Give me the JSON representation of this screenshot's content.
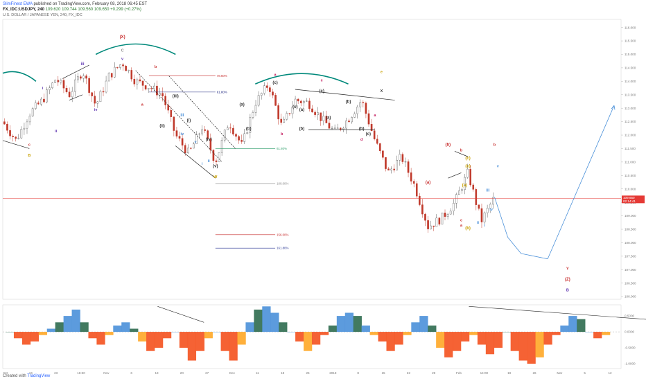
{
  "header": {
    "author": "SlimFinest EWA",
    "published": "published on TradingView.com, February 08, 2018 06:45 EST",
    "symbol": "FX_IDC:USDJPY, 240",
    "ohlc_o": "109.620",
    "ohlc_rest": "109.744 109.560 109.650",
    "change": "+0.299 (+0.27%)",
    "title": "U.S. DOLLAR / JAPANESE YEN, 240, FX_IDC"
  },
  "footer": {
    "created": "Created with",
    "brand": "TradingView"
  },
  "colors": {
    "up": "#5a5a5a",
    "down": "#c0392b",
    "arc": "#00897b",
    "projection": "#4a90d9",
    "fib100": "#888888",
    "fib61": "#1a237e",
    "fib78": "#c62828",
    "fib61g": "#2e9e6a",
    "fib161": "#283593",
    "fib156": "#c62828",
    "osc_pos": "#2e6b4f",
    "osc_pos2": "#4a90d9",
    "osc_neg": "#f4511e",
    "osc_neg2": "#ffa726",
    "price_line": "#e53935"
  },
  "chart_data": [
    {
      "type": "candlestick",
      "title": "U.S. DOLLAR / JAPANESE YEN, 240, FX_IDC",
      "y_ticks": [
        "116.000",
        "115.500",
        "115.000",
        "114.500",
        "114.000",
        "113.500",
        "113.000",
        "112.500",
        "112.000",
        "111.500",
        "111.000",
        "110.500",
        "110.000",
        "109.500",
        "109.000",
        "108.500",
        "108.000",
        "107.500",
        "107.000",
        "106.500",
        "106.000"
      ],
      "ylim": [
        105.9,
        116.3
      ],
      "x_ticks": [
        "Oct",
        "16",
        "23",
        "16:30",
        "Nov",
        "6",
        "13",
        "20",
        "27",
        "Dec",
        "11",
        "18",
        "25",
        "2018",
        "8",
        "15",
        "22",
        "29",
        "Feb",
        "14:00",
        "19",
        "26",
        "Mar",
        "5",
        "12"
      ],
      "last_price": "109.650",
      "last_time": "02:14:41",
      "path_points": [
        {
          "t": 0,
          "v": 112.5
        },
        {
          "t": 4,
          "v": 111.8
        },
        {
          "t": 8,
          "v": 112.8
        },
        {
          "t": 12,
          "v": 113.3
        },
        {
          "t": 16,
          "v": 114.1
        },
        {
          "t": 20,
          "v": 113.5
        },
        {
          "t": 24,
          "v": 114.4
        },
        {
          "t": 28,
          "v": 113.1
        },
        {
          "t": 32,
          "v": 114.2
        },
        {
          "t": 36,
          "v": 114.7
        },
        {
          "t": 40,
          "v": 114.0
        },
        {
          "t": 44,
          "v": 113.8
        },
        {
          "t": 48,
          "v": 113.5
        },
        {
          "t": 52,
          "v": 112.0
        },
        {
          "t": 56,
          "v": 111.3
        },
        {
          "t": 60,
          "v": 112.3
        },
        {
          "t": 64,
          "v": 111.0
        },
        {
          "t": 68,
          "v": 112.5
        },
        {
          "t": 72,
          "v": 111.6
        },
        {
          "t": 76,
          "v": 113.2
        },
        {
          "t": 80,
          "v": 113.9
        },
        {
          "t": 84,
          "v": 112.3
        },
        {
          "t": 88,
          "v": 113.3
        },
        {
          "t": 92,
          "v": 113.2
        },
        {
          "t": 96,
          "v": 112.6
        },
        {
          "t": 100,
          "v": 112.1
        },
        {
          "t": 104,
          "v": 112.6
        },
        {
          "t": 108,
          "v": 113.3
        },
        {
          "t": 112,
          "v": 111.8
        },
        {
          "t": 116,
          "v": 110.6
        },
        {
          "t": 120,
          "v": 111.2
        },
        {
          "t": 124,
          "v": 110.1
        },
        {
          "t": 128,
          "v": 108.6
        },
        {
          "t": 132,
          "v": 108.9
        },
        {
          "t": 136,
          "v": 109.5
        },
        {
          "t": 140,
          "v": 110.6
        },
        {
          "t": 144,
          "v": 108.8
        },
        {
          "t": 148,
          "v": 109.7
        }
      ],
      "projection": [
        {
          "t": 148,
          "v": 109.7
        },
        {
          "t": 152,
          "v": 108.2
        },
        {
          "t": 156,
          "v": 107.6
        },
        {
          "t": 164,
          "v": 107.4
        },
        {
          "t": 184,
          "v": 113.1
        }
      ],
      "fib_levels": [
        {
          "label": "78.60%",
          "value": 114.2
        },
        {
          "label": "61.80%",
          "value": 113.6
        },
        {
          "label": "61.80%",
          "value": 111.5
        },
        {
          "label": "100.00%",
          "value": 110.2
        },
        {
          "label": "156.00%",
          "value": 108.3
        },
        {
          "label": "161.80%",
          "value": 107.8
        }
      ],
      "wave_labels": [
        "(X)",
        "C",
        "v",
        "iii",
        "i",
        "ii",
        "iv",
        "B",
        "c",
        "b",
        "a",
        "(iii)",
        "(ii)",
        "(i)",
        "(iv)",
        "(v)",
        "iii",
        "iv",
        "v",
        "i",
        "ii",
        "W",
        "(a)",
        "(b)",
        "(c)",
        "a",
        "b",
        "c",
        "d",
        "e",
        "X",
        "(c)",
        "(a)",
        "(b)",
        "(c)",
        "(b)",
        "(a)",
        "(b)",
        "(c)",
        "a",
        "(a)",
        "(b)",
        "(c)",
        "a",
        "b",
        "c",
        "(a)",
        "(b)",
        "(c)",
        "b",
        "i",
        "ii",
        "iii",
        "iv",
        "v",
        "Y",
        "(Z)",
        "B"
      ]
    },
    {
      "type": "area",
      "title": "",
      "y_ticks": [
        "0.5000",
        "0.0000",
        "-0.5000",
        "-1.0000"
      ],
      "ylim": [
        -1.15,
        0.85
      ],
      "values": [
        0.0,
        -0.2,
        -0.4,
        -0.3,
        -0.1,
        0.1,
        0.3,
        0.5,
        0.7,
        0.3,
        -0.2,
        -0.4,
        -0.1,
        0.2,
        0.3,
        0.1,
        -0.3,
        -0.6,
        -0.5,
        -0.2,
        0.0,
        -0.5,
        -0.9,
        -0.6,
        -0.2,
        0.0,
        -0.6,
        -0.9,
        -0.4,
        0.3,
        0.7,
        0.8,
        0.6,
        0.3,
        0.0,
        -0.3,
        -0.6,
        -0.4,
        -0.1,
        0.2,
        0.5,
        0.6,
        0.5,
        0.2,
        -0.1,
        -0.3,
        -0.6,
        -0.4,
        -0.1,
        0.3,
        0.5,
        0.2,
        -0.5,
        -0.8,
        -0.6,
        -0.3,
        -0.1,
        -0.4,
        -0.7,
        -0.5,
        0.0,
        -0.6,
        -0.9,
        -1.0,
        -0.8,
        -0.4,
        -0.1,
        0.2,
        0.5,
        0.4,
        0.0,
        -0.2,
        -0.1
      ]
    }
  ]
}
